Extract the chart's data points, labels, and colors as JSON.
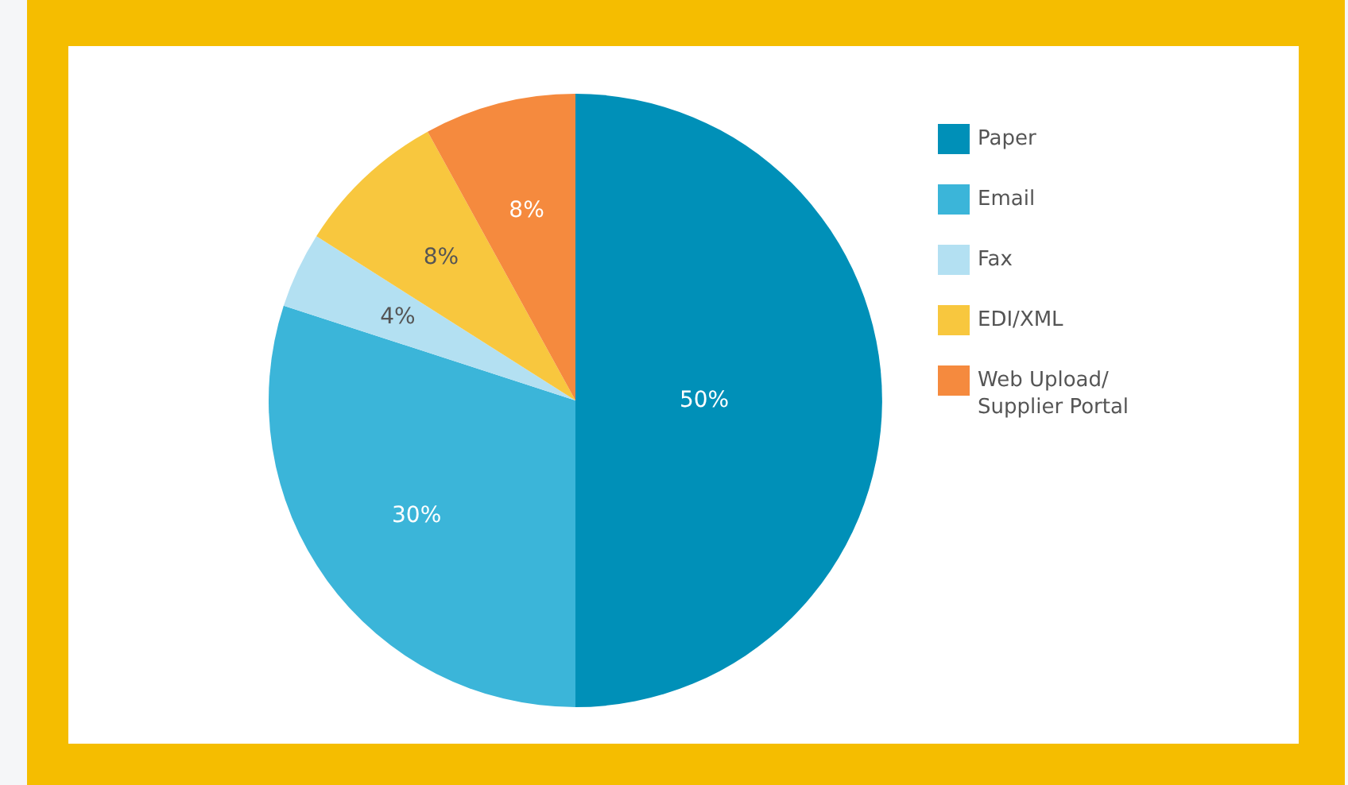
{
  "chart_data": {
    "type": "pie",
    "categories": [
      "Paper",
      "Email",
      "Fax",
      "EDI/XML",
      "Web Upload/ Supplier Portal"
    ],
    "values": [
      50,
      30,
      4,
      8,
      8
    ],
    "colors": [
      "#0090b8",
      "#3bb5d9",
      "#b3e0f2",
      "#f8c73e",
      "#f58a3e"
    ],
    "value_labels": [
      "50%",
      "30%",
      "4%",
      "8%",
      "8%"
    ],
    "legend": "right"
  }
}
